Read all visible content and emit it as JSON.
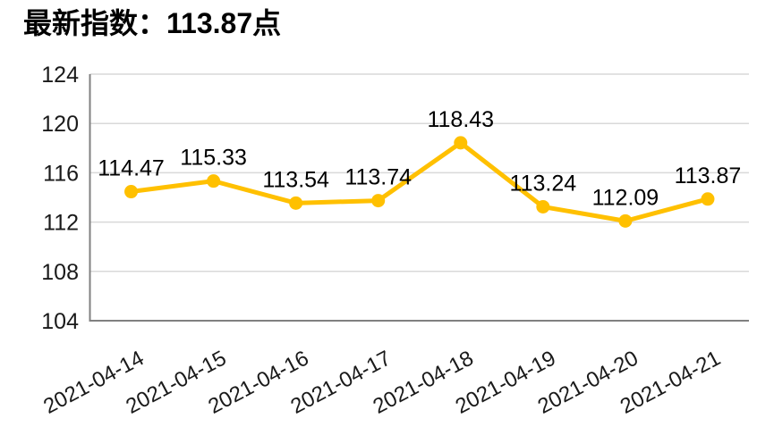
{
  "header": {
    "title": "最新指数：113.87点"
  },
  "chart_data": {
    "type": "line",
    "title": "最新指数：113.87点",
    "categories": [
      "2021-04-14",
      "2021-04-15",
      "2021-04-16",
      "2021-04-17",
      "2021-04-18",
      "2021-04-19",
      "2021-04-20",
      "2021-04-21"
    ],
    "values": [
      114.47,
      115.33,
      113.54,
      113.74,
      118.43,
      113.24,
      112.09,
      113.87
    ],
    "data_labels": [
      "114.47",
      "115.33",
      "113.54",
      "113.74",
      "118.43",
      "113.24",
      "112.09",
      "113.87"
    ],
    "xlabel": "",
    "ylabel": "",
    "ylim": [
      104,
      124
    ],
    "yticks": [
      104,
      108,
      112,
      116,
      120,
      124
    ],
    "grid": true,
    "legend": "none",
    "marker": "circle",
    "x_label_rotation_deg": -28
  },
  "colors": {
    "line": "#FFC000",
    "marker": "#FFC000",
    "grid": "#D9D9D9",
    "axis": "#808080",
    "text": "#000000",
    "background": "#FFFFFF"
  }
}
